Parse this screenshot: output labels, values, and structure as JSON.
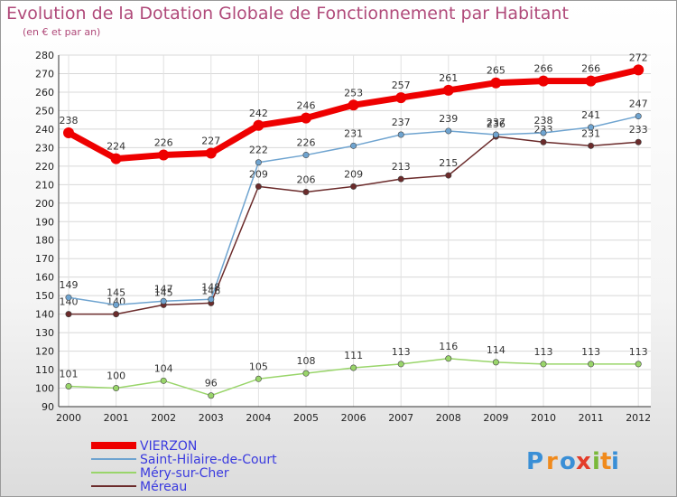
{
  "chart_data": {
    "type": "line",
    "title": "Evolution de la Dotation Globale de Fonctionnement par Habitant",
    "subtitle": "(en € et par an)",
    "xlabel": "",
    "ylabel": "",
    "ylim": [
      90,
      280
    ],
    "ytick_step": 10,
    "grid": true,
    "legend_position": "bottom-left",
    "x": [
      "2000",
      "2001",
      "2002",
      "2003",
      "2004",
      "2005",
      "2006",
      "2007",
      "2008",
      "2009",
      "2010",
      "2011",
      "2012"
    ],
    "series": [
      {
        "name": "VIERZON",
        "color": "#ee0000",
        "values": [
          238,
          224,
          226,
          227,
          242,
          246,
          253,
          257,
          261,
          265,
          266,
          266,
          272
        ]
      },
      {
        "name": "Saint-Hilaire-de-Court",
        "color": "#6fa4d0",
        "values": [
          149,
          145,
          147,
          148,
          222,
          226,
          231,
          237,
          239,
          237,
          238,
          241,
          247
        ]
      },
      {
        "name": "Méry-sur-Cher",
        "color": "#99d56a",
        "values": [
          101,
          100,
          104,
          96,
          105,
          108,
          111,
          113,
          116,
          114,
          113,
          113,
          113
        ]
      },
      {
        "name": "Méreau",
        "color": "#6b2b2b",
        "values": [
          140,
          140,
          145,
          146,
          209,
          206,
          209,
          213,
          215,
          236,
          233,
          231,
          233
        ]
      }
    ]
  },
  "brand": {
    "name": "Proxiti",
    "letters": [
      "P",
      "r",
      "o",
      "x",
      "i",
      "t",
      "i"
    ],
    "colors": [
      "#3a8fd6",
      "#f08a1c",
      "#3a8fd6",
      "#e33c2a",
      "#7ab83a",
      "#f08a1c",
      "#3a8fd6"
    ]
  }
}
